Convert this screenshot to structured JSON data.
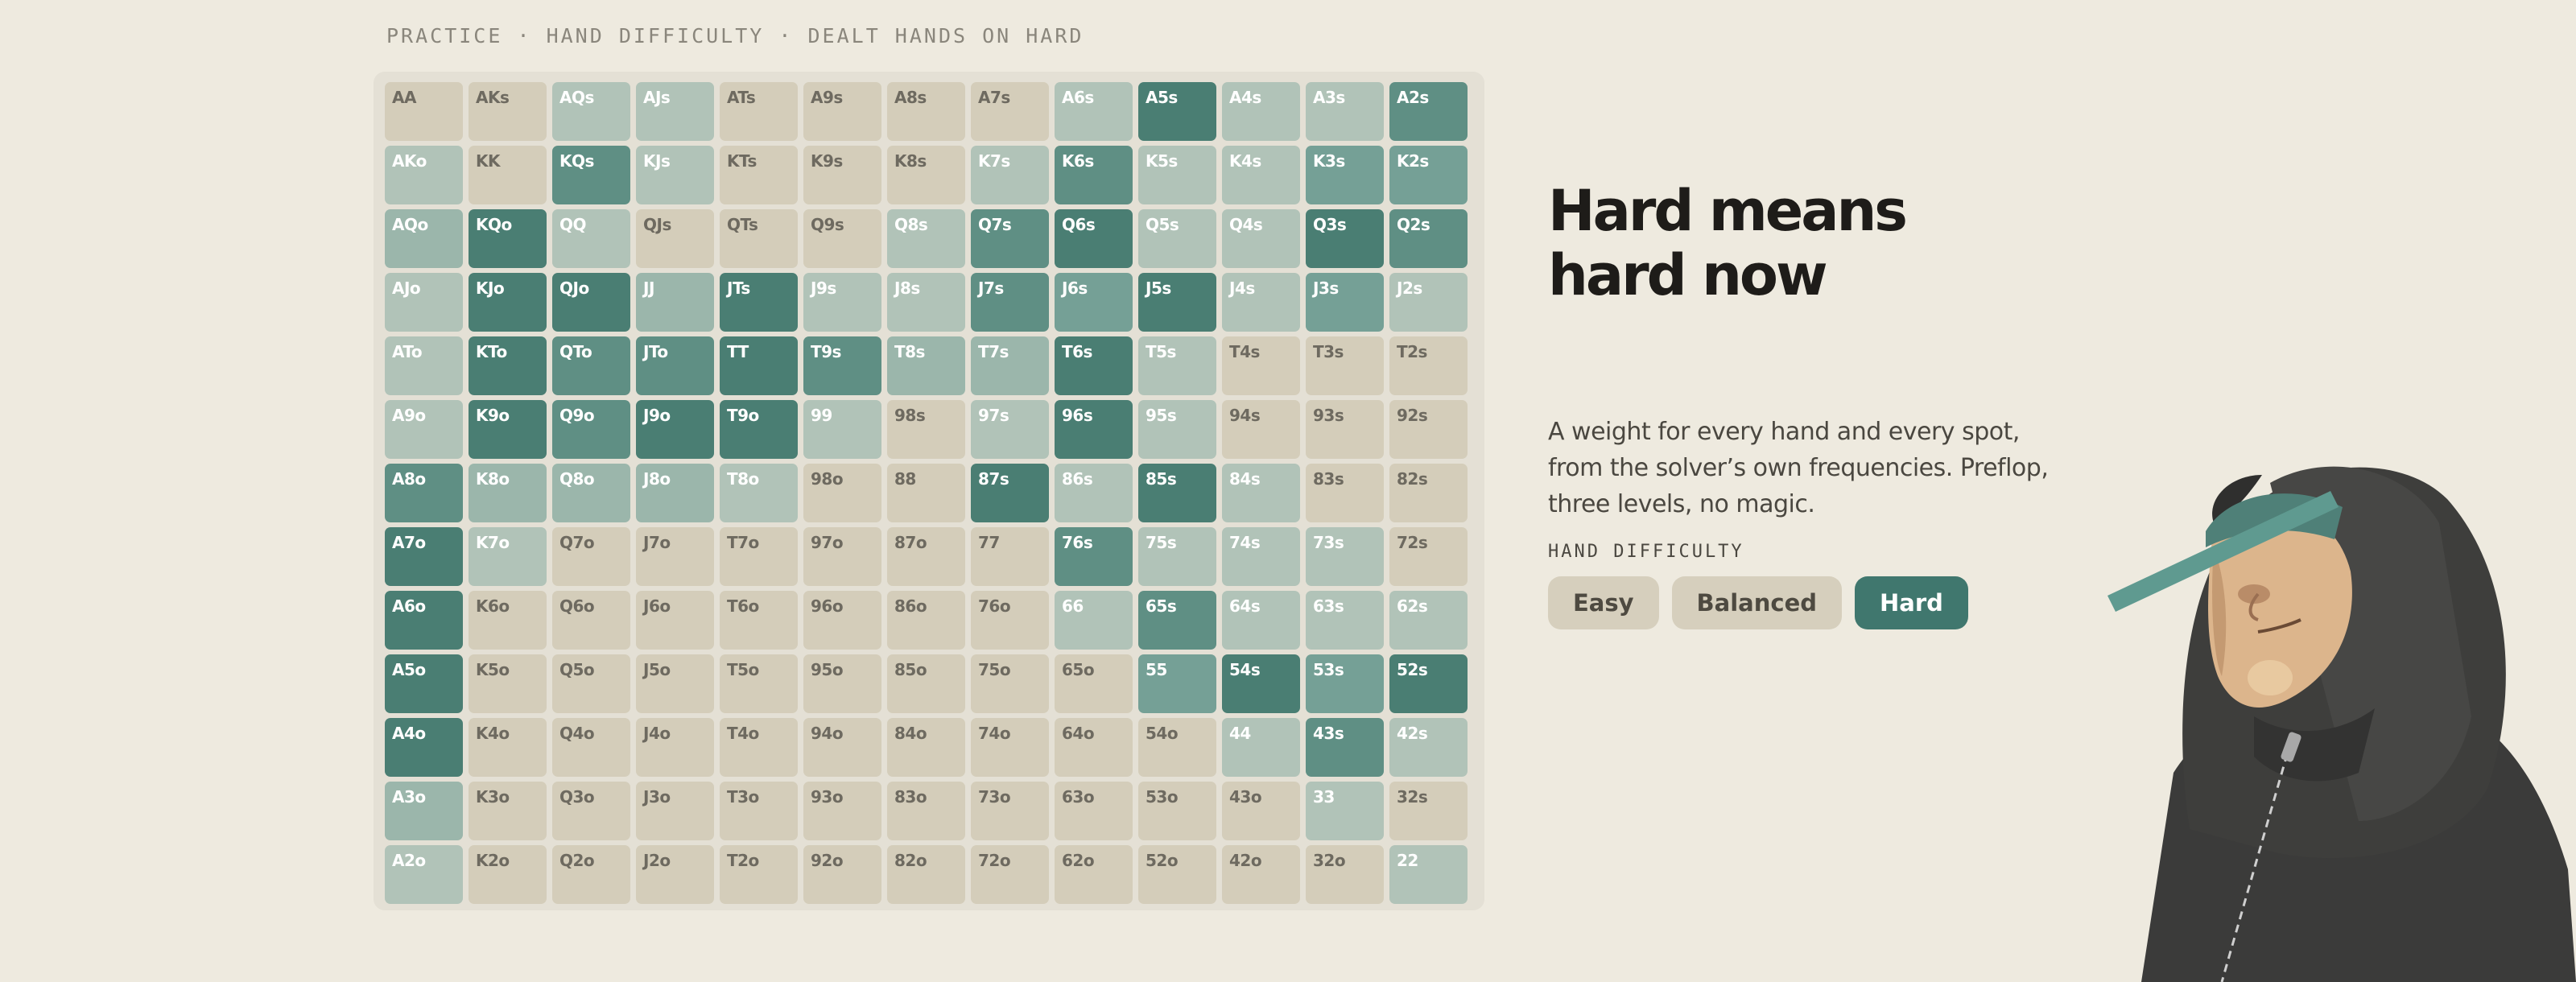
{
  "header": {
    "breadcrumb": "PRACTICE · HAND DIFFICULTY · DEALT HANDS ON HARD"
  },
  "colors": {
    "background": "#eeeadf",
    "accent": "#40776e",
    "levels": [
      "#d4cdba",
      "#b1c3b8",
      "#9bb6ab",
      "#75a096",
      "#5f8f84",
      "#4a7e73"
    ]
  },
  "grid": {
    "rows": [
      [
        [
          "AA",
          0
        ],
        [
          "AKs",
          0
        ],
        [
          "AQs",
          1
        ],
        [
          "AJs",
          1
        ],
        [
          "ATs",
          0
        ],
        [
          "A9s",
          0
        ],
        [
          "A8s",
          0
        ],
        [
          "A7s",
          0
        ],
        [
          "A6s",
          1
        ],
        [
          "A5s",
          5
        ],
        [
          "A4s",
          1
        ],
        [
          "A3s",
          1
        ],
        [
          "A2s",
          4
        ]
      ],
      [
        [
          "AKo",
          1
        ],
        [
          "KK",
          0
        ],
        [
          "KQs",
          4
        ],
        [
          "KJs",
          1
        ],
        [
          "KTs",
          0
        ],
        [
          "K9s",
          0
        ],
        [
          "K8s",
          0
        ],
        [
          "K7s",
          1
        ],
        [
          "K6s",
          4
        ],
        [
          "K5s",
          1
        ],
        [
          "K4s",
          1
        ],
        [
          "K3s",
          3
        ],
        [
          "K2s",
          3
        ]
      ],
      [
        [
          "AQo",
          2
        ],
        [
          "KQo",
          5
        ],
        [
          "QQ",
          1
        ],
        [
          "QJs",
          0
        ],
        [
          "QTs",
          0
        ],
        [
          "Q9s",
          0
        ],
        [
          "Q8s",
          1
        ],
        [
          "Q7s",
          4
        ],
        [
          "Q6s",
          5
        ],
        [
          "Q5s",
          1
        ],
        [
          "Q4s",
          1
        ],
        [
          "Q3s",
          5
        ],
        [
          "Q2s",
          4
        ]
      ],
      [
        [
          "AJo",
          1
        ],
        [
          "KJo",
          5
        ],
        [
          "QJo",
          5
        ],
        [
          "JJ",
          2
        ],
        [
          "JTs",
          5
        ],
        [
          "J9s",
          1
        ],
        [
          "J8s",
          1
        ],
        [
          "J7s",
          4
        ],
        [
          "J6s",
          3
        ],
        [
          "J5s",
          5
        ],
        [
          "J4s",
          1
        ],
        [
          "J3s",
          3
        ],
        [
          "J2s",
          1
        ]
      ],
      [
        [
          "ATo",
          1
        ],
        [
          "KTo",
          5
        ],
        [
          "QTo",
          4
        ],
        [
          "JTo",
          4
        ],
        [
          "TT",
          5
        ],
        [
          "T9s",
          4
        ],
        [
          "T8s",
          2
        ],
        [
          "T7s",
          2
        ],
        [
          "T6s",
          5
        ],
        [
          "T5s",
          1
        ],
        [
          "T4s",
          0
        ],
        [
          "T3s",
          0
        ],
        [
          "T2s",
          0
        ]
      ],
      [
        [
          "A9o",
          1
        ],
        [
          "K9o",
          5
        ],
        [
          "Q9o",
          4
        ],
        [
          "J9o",
          5
        ],
        [
          "T9o",
          5
        ],
        [
          "99",
          1
        ],
        [
          "98s",
          0
        ],
        [
          "97s",
          1
        ],
        [
          "96s",
          5
        ],
        [
          "95s",
          1
        ],
        [
          "94s",
          0
        ],
        [
          "93s",
          0
        ],
        [
          "92s",
          0
        ]
      ],
      [
        [
          "A8o",
          4
        ],
        [
          "K8o",
          2
        ],
        [
          "Q8o",
          2
        ],
        [
          "J8o",
          2
        ],
        [
          "T8o",
          1
        ],
        [
          "98o",
          0
        ],
        [
          "88",
          0
        ],
        [
          "87s",
          5
        ],
        [
          "86s",
          1
        ],
        [
          "85s",
          5
        ],
        [
          "84s",
          1
        ],
        [
          "83s",
          0
        ],
        [
          "82s",
          0
        ]
      ],
      [
        [
          "A7o",
          5
        ],
        [
          "K7o",
          1
        ],
        [
          "Q7o",
          0
        ],
        [
          "J7o",
          0
        ],
        [
          "T7o",
          0
        ],
        [
          "97o",
          0
        ],
        [
          "87o",
          0
        ],
        [
          "77",
          0
        ],
        [
          "76s",
          4
        ],
        [
          "75s",
          1
        ],
        [
          "74s",
          1
        ],
        [
          "73s",
          1
        ],
        [
          "72s",
          0
        ]
      ],
      [
        [
          "A6o",
          5
        ],
        [
          "K6o",
          0
        ],
        [
          "Q6o",
          0
        ],
        [
          "J6o",
          0
        ],
        [
          "T6o",
          0
        ],
        [
          "96o",
          0
        ],
        [
          "86o",
          0
        ],
        [
          "76o",
          0
        ],
        [
          "66",
          1
        ],
        [
          "65s",
          4
        ],
        [
          "64s",
          1
        ],
        [
          "63s",
          1
        ],
        [
          "62s",
          1
        ]
      ],
      [
        [
          "A5o",
          5
        ],
        [
          "K5o",
          0
        ],
        [
          "Q5o",
          0
        ],
        [
          "J5o",
          0
        ],
        [
          "T5o",
          0
        ],
        [
          "95o",
          0
        ],
        [
          "85o",
          0
        ],
        [
          "75o",
          0
        ],
        [
          "65o",
          0
        ],
        [
          "55",
          3
        ],
        [
          "54s",
          5
        ],
        [
          "53s",
          3
        ],
        [
          "52s",
          5
        ]
      ],
      [
        [
          "A4o",
          5
        ],
        [
          "K4o",
          0
        ],
        [
          "Q4o",
          0
        ],
        [
          "J4o",
          0
        ],
        [
          "T4o",
          0
        ],
        [
          "94o",
          0
        ],
        [
          "84o",
          0
        ],
        [
          "74o",
          0
        ],
        [
          "64o",
          0
        ],
        [
          "54o",
          0
        ],
        [
          "44",
          1
        ],
        [
          "43s",
          4
        ],
        [
          "42s",
          1
        ]
      ],
      [
        [
          "A3o",
          2
        ],
        [
          "K3o",
          0
        ],
        [
          "Q3o",
          0
        ],
        [
          "J3o",
          0
        ],
        [
          "T3o",
          0
        ],
        [
          "93o",
          0
        ],
        [
          "83o",
          0
        ],
        [
          "73o",
          0
        ],
        [
          "63o",
          0
        ],
        [
          "53o",
          0
        ],
        [
          "43o",
          0
        ],
        [
          "33",
          1
        ],
        [
          "32s",
          0
        ]
      ],
      [
        [
          "A2o",
          1
        ],
        [
          "K2o",
          0
        ],
        [
          "Q2o",
          0
        ],
        [
          "J2o",
          0
        ],
        [
          "T2o",
          0
        ],
        [
          "92o",
          0
        ],
        [
          "82o",
          0
        ],
        [
          "72o",
          0
        ],
        [
          "62o",
          0
        ],
        [
          "52o",
          0
        ],
        [
          "42o",
          0
        ],
        [
          "32o",
          0
        ],
        [
          "22",
          1
        ]
      ]
    ]
  },
  "panel": {
    "headline_line1": "Hard means",
    "headline_line2": "hard now",
    "description": "A weight for every hand and every spot, from the solver’s own frequencies. Preflop, three levels, no magic.",
    "difficulty_label": "HAND DIFFICULTY",
    "buttons": [
      {
        "label": "Easy",
        "active": false
      },
      {
        "label": "Balanced",
        "active": false
      },
      {
        "label": "Hard",
        "active": true
      }
    ]
  },
  "illustration": {
    "icon": "hooded-figure-icon"
  }
}
